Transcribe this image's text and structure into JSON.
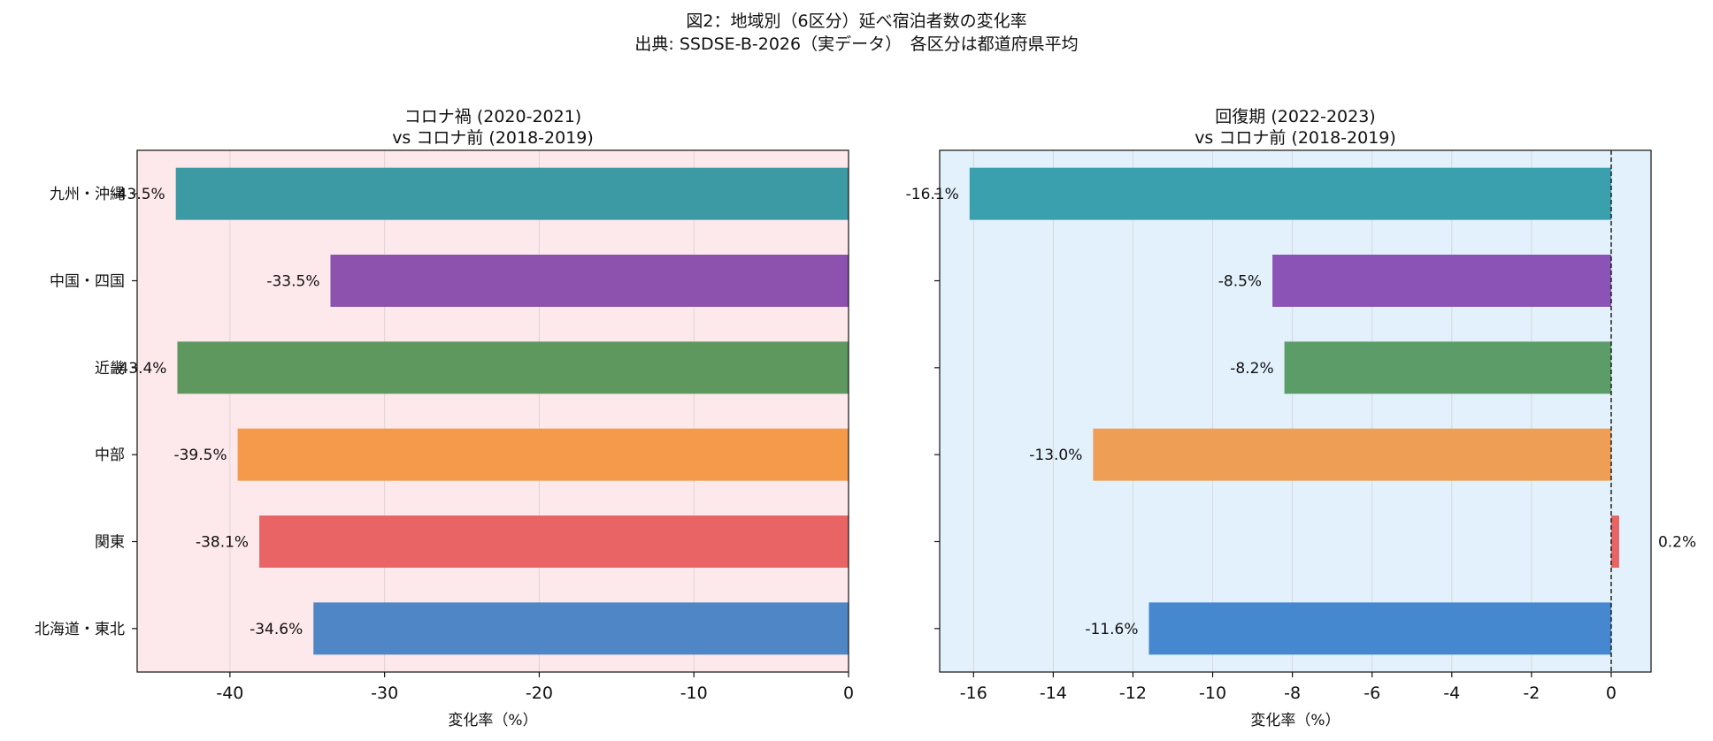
{
  "figure": {
    "title_line1": "図2：地域別（6区分）延べ宿泊者数の変化率",
    "title_line2": "出典: SSDSE-B-2026（実データ）　各区分は都道府県平均"
  },
  "chart_data": [
    {
      "type": "bar",
      "orientation": "horizontal",
      "title_lines": [
        "コロナ禍 (2020-2021)",
        "vs コロナ前 (2018-2019)"
      ],
      "xlabel": "変化率（%）",
      "ylabel": "",
      "background": "#fde8ec",
      "xlim": [
        -46,
        0
      ],
      "xticks": [
        -40,
        -30,
        -20,
        -10,
        0
      ],
      "grid": "vertical",
      "zero_line": false,
      "show_category_labels": true,
      "categories": [
        "北海道・東北",
        "関東",
        "中部",
        "近畿",
        "中国・四国",
        "九州・沖縄"
      ],
      "values": [
        -34.6,
        -38.1,
        -39.5,
        -43.4,
        -33.5,
        -43.5
      ],
      "data_labels": [
        "-34.6%",
        "-38.1%",
        "-39.5%",
        "-43.4%",
        "-33.5%",
        "-43.5%"
      ],
      "colors": [
        "#4f86c6",
        "#e96565",
        "#f59a4b",
        "#5f985f",
        "#8c52ad",
        "#3c9aa5"
      ]
    },
    {
      "type": "bar",
      "orientation": "horizontal",
      "title_lines": [
        "回復期 (2022-2023)",
        "vs コロナ前 (2018-2019)"
      ],
      "xlabel": "変化率（%）",
      "ylabel": "",
      "background": "#e3f1fc",
      "xlim": [
        -16.85,
        1.0
      ],
      "xticks": [
        -16,
        -14,
        -12,
        -10,
        -8,
        -6,
        -4,
        -2,
        0
      ],
      "grid": "vertical",
      "zero_line": true,
      "show_category_labels": false,
      "categories": [
        "北海道・東北",
        "関東",
        "中部",
        "近畿",
        "中国・四国",
        "九州・沖縄"
      ],
      "values": [
        -11.6,
        0.2,
        -13.0,
        -8.2,
        -8.5,
        -16.1
      ],
      "data_labels": [
        "-11.6%",
        "0.2%",
        "-13.0%",
        "-8.2%",
        "-8.5%",
        "-16.1%"
      ],
      "colors": [
        "#4688cf",
        "#e96565",
        "#ee9e55",
        "#5b9c68",
        "#8a53b5",
        "#3ba0ad"
      ]
    }
  ]
}
